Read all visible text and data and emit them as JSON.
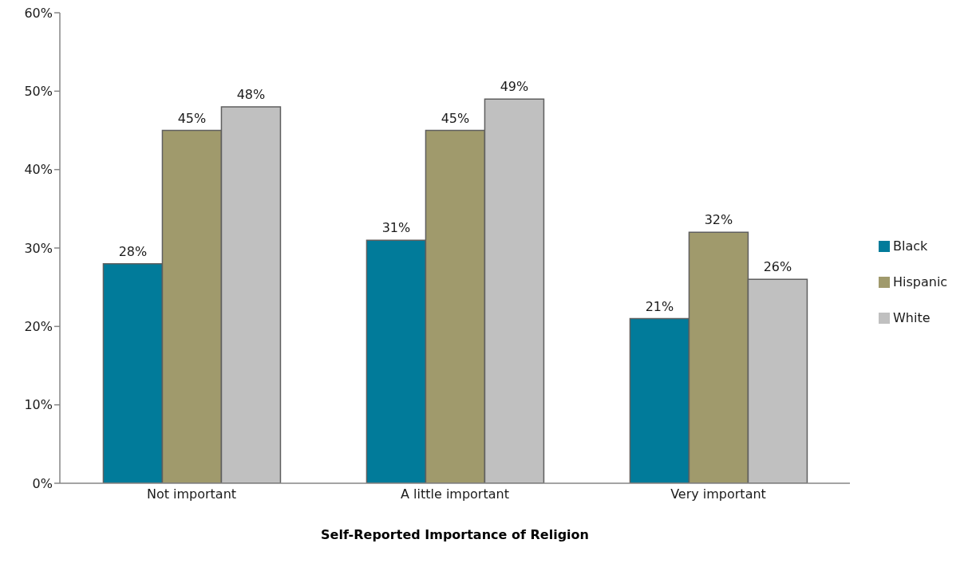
{
  "chart_data": {
    "type": "bar",
    "xlabel": "Self-Reported Importance of Religion",
    "categories": [
      "Not important",
      "A little important",
      "Very important"
    ],
    "series": [
      {
        "name": "Black",
        "color": "#017b9a",
        "values": [
          28,
          31,
          21
        ],
        "value_labels": [
          "28%",
          "31%",
          "21%"
        ]
      },
      {
        "name": "Hispanic",
        "color": "#a09a6c",
        "values": [
          45,
          45,
          32
        ],
        "value_labels": [
          "45%",
          "45%",
          "32%"
        ]
      },
      {
        "name": "White",
        "color": "#c0c0c0",
        "values": [
          48,
          49,
          26
        ],
        "value_labels": [
          "48%",
          "49%",
          "26%"
        ]
      }
    ],
    "ylim": [
      0,
      60
    ],
    "yticks": [
      {
        "value": 0,
        "label": "0%"
      },
      {
        "value": 10,
        "label": "10%"
      },
      {
        "value": 20,
        "label": "20%"
      },
      {
        "value": 30,
        "label": "30%"
      },
      {
        "value": 40,
        "label": "40%"
      },
      {
        "value": 50,
        "label": "50%"
      },
      {
        "value": 60,
        "label": "60%"
      }
    ],
    "grid": false,
    "legend": "right"
  }
}
